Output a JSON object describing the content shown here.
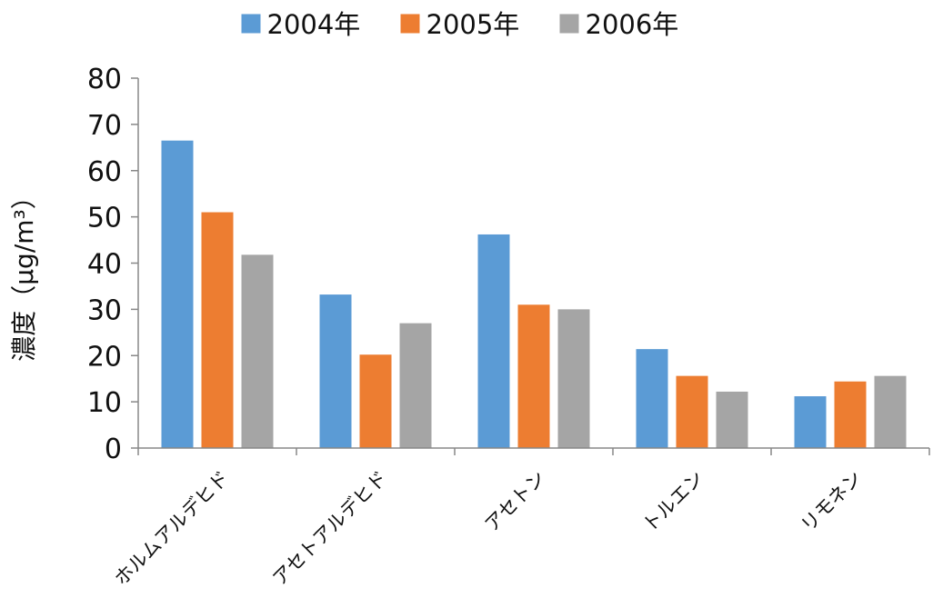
{
  "chart_data": {
    "type": "bar",
    "categories": [
      "ホルムアルデヒド",
      "アセトアルデヒド",
      "アセトン",
      "トルエン",
      "リモネン"
    ],
    "series": [
      {
        "name": "2004年",
        "color": "#5b9bd5",
        "values": [
          66.5,
          33.2,
          46.2,
          21.4,
          11.2
        ]
      },
      {
        "name": "2005年",
        "color": "#ed7d31",
        "values": [
          51.0,
          20.2,
          31.0,
          15.6,
          14.4
        ]
      },
      {
        "name": "2006年",
        "color": "#a5a5a5",
        "values": [
          41.8,
          27.0,
          30.0,
          12.2,
          15.6
        ]
      }
    ],
    "ylabel": "濃度（μg/m³）",
    "ylim": [
      0,
      80
    ],
    "yticks": [
      "0",
      "10",
      "20",
      "30",
      "40",
      "50",
      "60",
      "70",
      "80"
    ],
    "legend_position": "top",
    "grid": false
  }
}
